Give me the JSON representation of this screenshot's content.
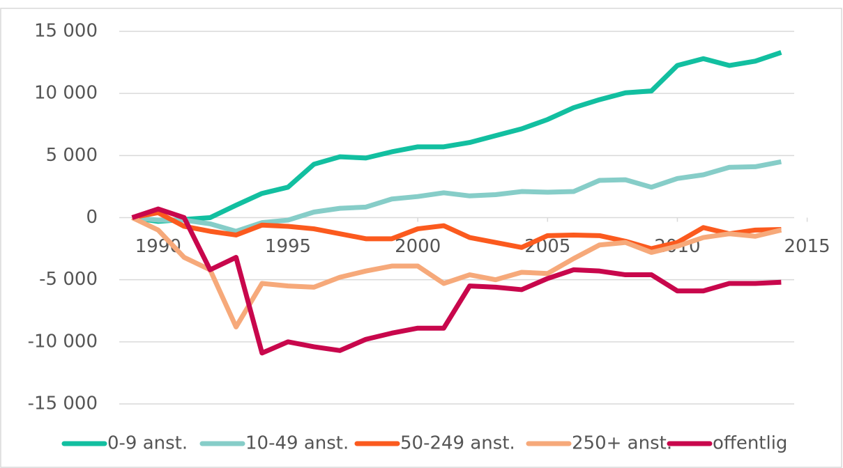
{
  "chart_data": {
    "type": "line",
    "x": [
      1989,
      1990,
      1991,
      1992,
      1993,
      1994,
      1995,
      1996,
      1997,
      1998,
      1999,
      2000,
      2001,
      2002,
      2003,
      2004,
      2005,
      2006,
      2007,
      2008,
      2009,
      2010,
      2011,
      2012,
      2013,
      2014
    ],
    "series": [
      {
        "name": "0-9 anst.",
        "color": "#12bfa0",
        "values": [
          0,
          -300,
          -150,
          0,
          1000,
          1950,
          2450,
          4300,
          4900,
          4800,
          5300,
          5700,
          5700,
          6050,
          6600,
          7150,
          7900,
          8850,
          9500,
          10050,
          10200,
          12250,
          12800,
          12250,
          12600,
          13300
        ]
      },
      {
        "name": "10-49 anst.",
        "color": "#86cdc8",
        "values": [
          0,
          -200,
          -200,
          -500,
          -1100,
          -400,
          -200,
          450,
          750,
          850,
          1500,
          1700,
          2000,
          1750,
          1850,
          2100,
          2050,
          2100,
          3000,
          3050,
          2450,
          3150,
          3450,
          4050,
          4100,
          4500
        ]
      },
      {
        "name": "50-249 anst.",
        "color": "#fb5a1e",
        "values": [
          0,
          400,
          -700,
          -1100,
          -1400,
          -600,
          -700,
          -900,
          -1300,
          -1700,
          -1700,
          -900,
          -650,
          -1600,
          -2000,
          -2400,
          -1450,
          -1400,
          -1450,
          -1900,
          -2500,
          -2000,
          -800,
          -1300,
          -1000,
          -950
        ]
      },
      {
        "name": "250+ anst.",
        "color": "#f6a97a",
        "values": [
          0,
          -1000,
          -3200,
          -4200,
          -8800,
          -5300,
          -5500,
          -5600,
          -4800,
          -4300,
          -3900,
          -3900,
          -5300,
          -4600,
          -5000,
          -4400,
          -4500,
          -3300,
          -2200,
          -2000,
          -2800,
          -2300,
          -1600,
          -1300,
          -1500,
          -1000
        ]
      },
      {
        "name": "offentlig",
        "color": "#c8074c",
        "values": [
          0,
          700,
          0,
          -4200,
          -3200,
          -10900,
          -10000,
          -10400,
          -10700,
          -9800,
          -9300,
          -8900,
          -8900,
          -5500,
          -5600,
          -5800,
          -4900,
          -4200,
          -4300,
          -4600,
          -4600,
          -5900,
          -5900,
          -5300,
          -5300,
          -5200
        ]
      }
    ],
    "xlim": [
      1988.5,
      2014.5
    ],
    "xticks": [
      1990,
      1995,
      2000,
      2005,
      2010,
      2015
    ],
    "ylim": [
      -15000,
      15000
    ],
    "yticks": [
      {
        "value": -15000,
        "label": "-15 000"
      },
      {
        "value": -10000,
        "label": "-10 000"
      },
      {
        "value": -5000,
        "label": "-5 000"
      },
      0,
      {
        "value": 5000,
        "label": "5 000"
      },
      {
        "value": 10000,
        "label": "10 000"
      },
      {
        "value": 15000,
        "label": "15 000"
      }
    ],
    "grid": true,
    "legend": "bottom"
  }
}
